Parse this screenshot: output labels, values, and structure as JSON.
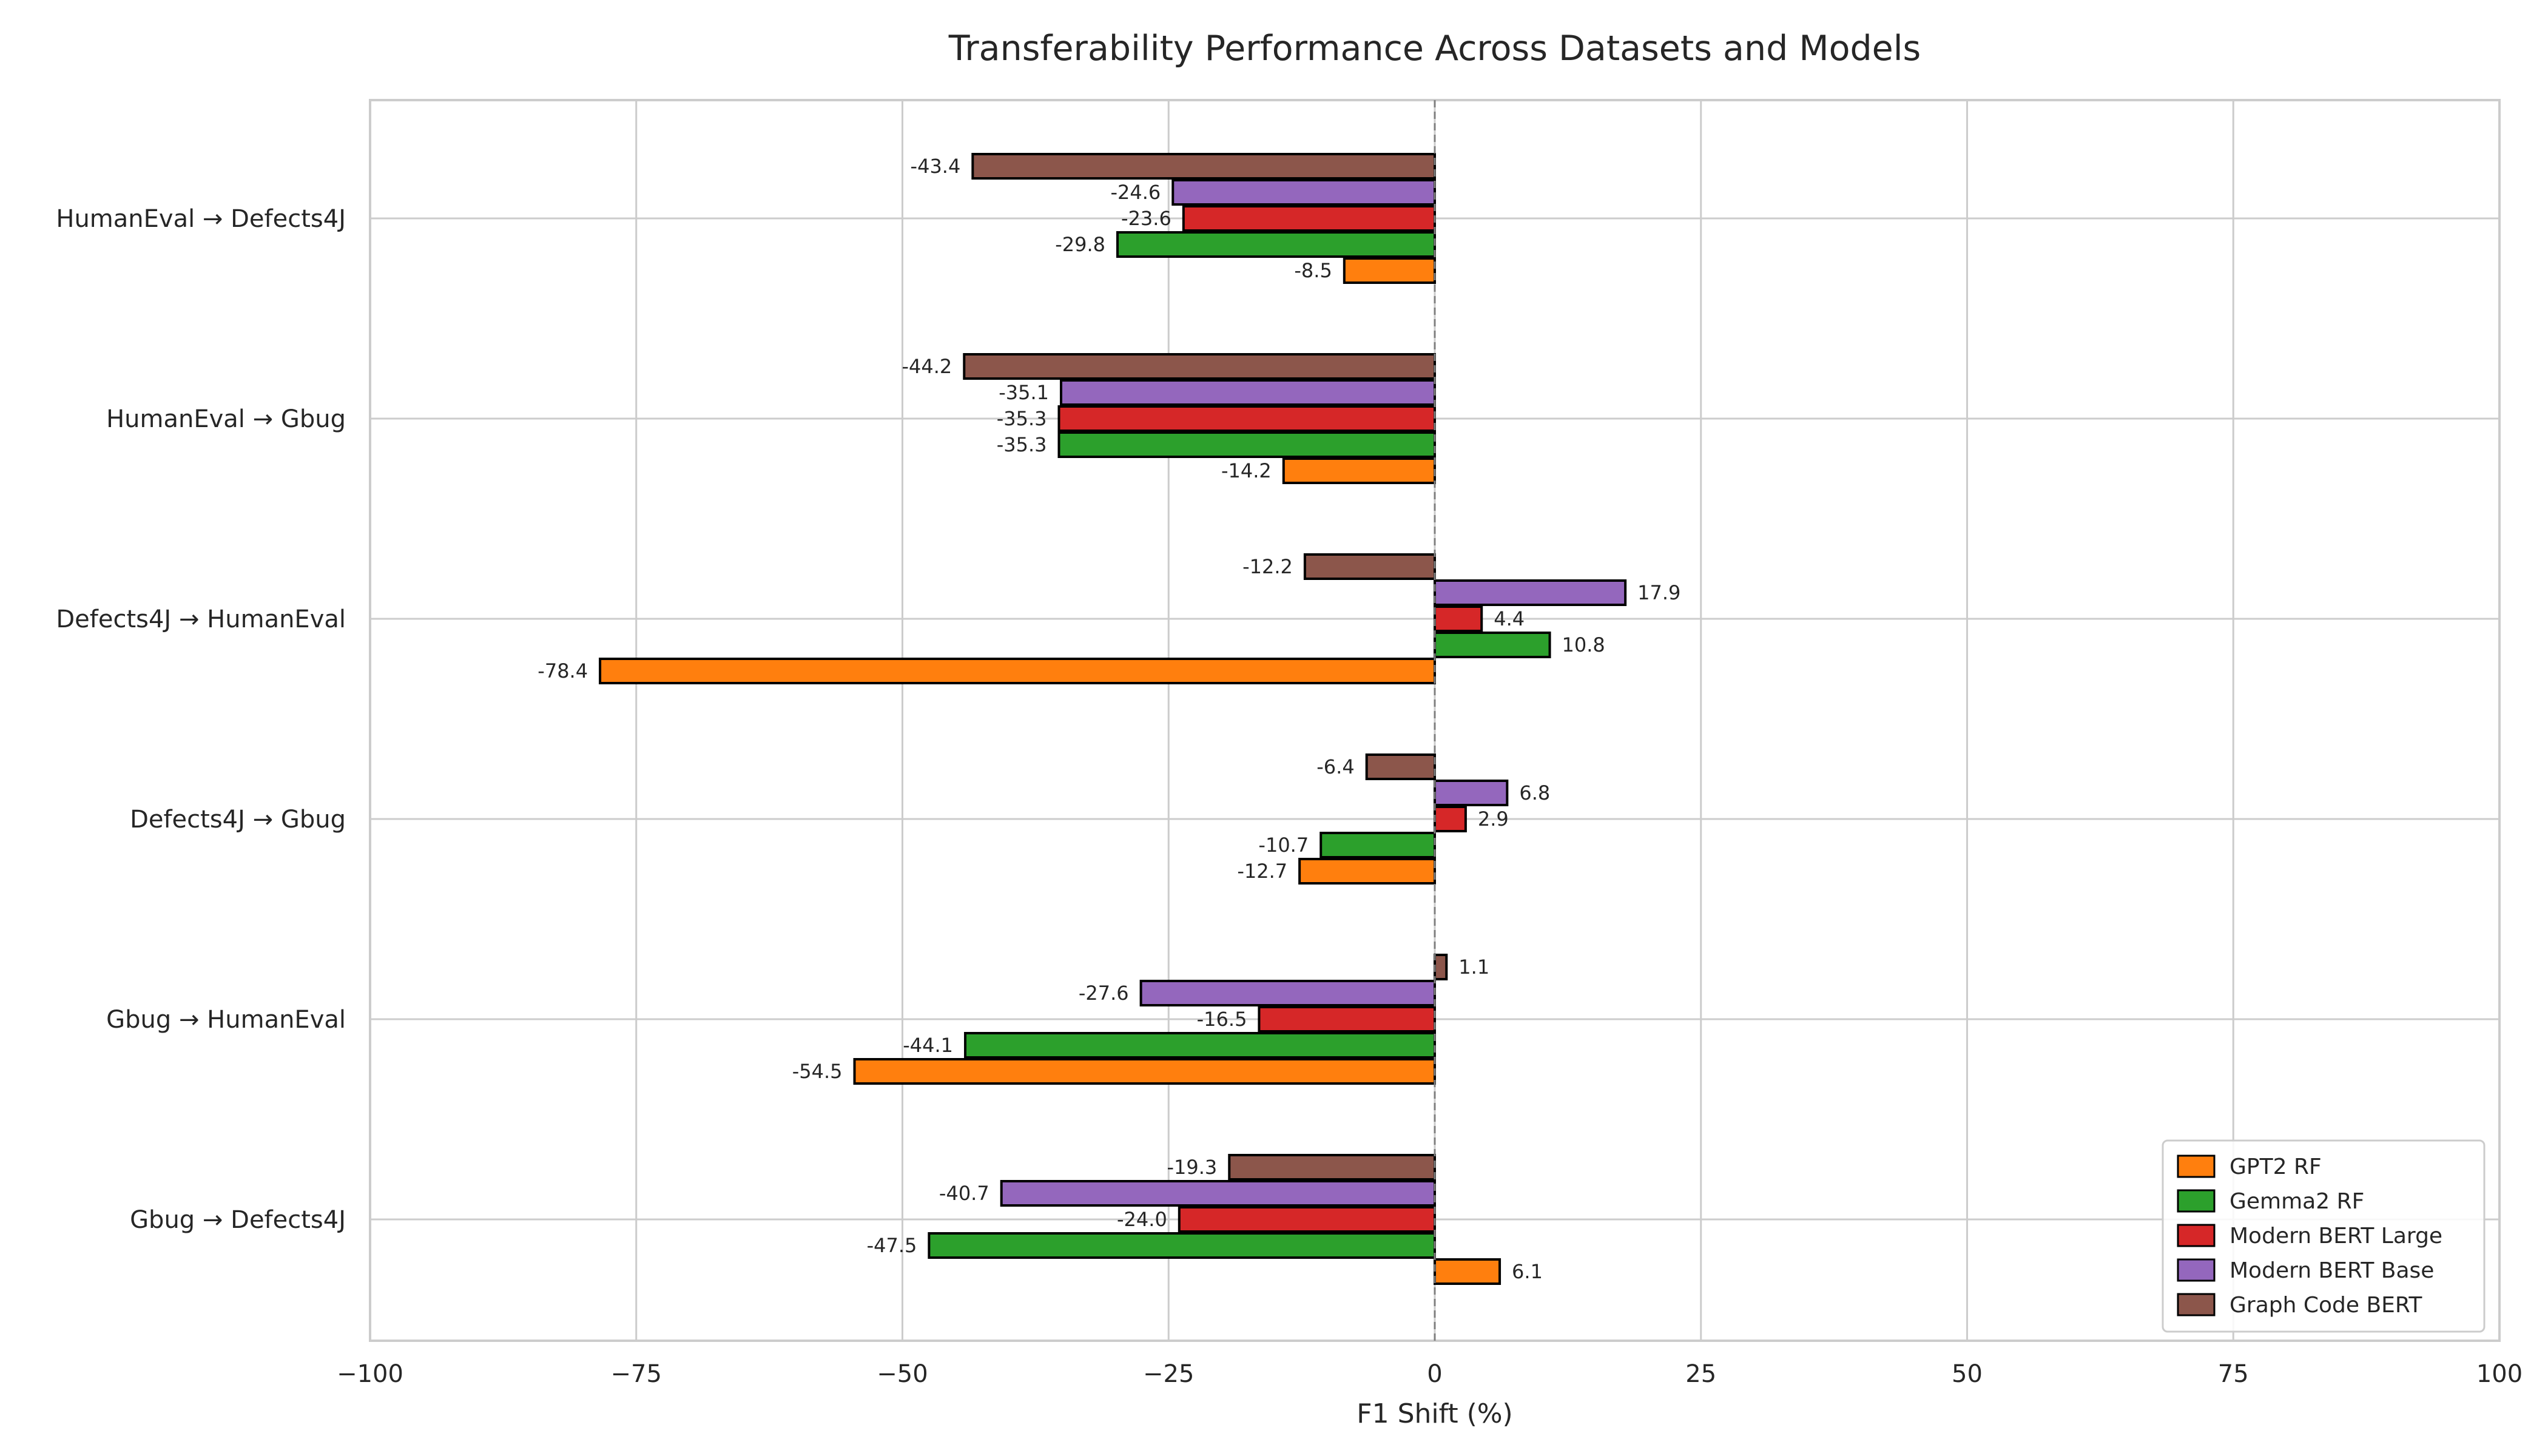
{
  "chart_data": {
    "type": "bar",
    "orientation": "horizontal",
    "title": "Transferability Performance Across Datasets and Models",
    "xlabel": "F1 Shift (%)",
    "ylabel": "",
    "xlim": [
      -100,
      100
    ],
    "xticks": [
      -100,
      -75,
      -50,
      -25,
      0,
      25,
      50,
      75,
      100
    ],
    "xtick_labels": [
      "−100",
      "−75",
      "−50",
      "−25",
      "0",
      "25",
      "50",
      "75",
      "100"
    ],
    "grid": true,
    "zero_line": "dashed",
    "legend_position": "lower-right",
    "categories": [
      "HumanEval → Defects4J",
      "HumanEval → Gbug",
      "Defects4J → HumanEval",
      "Defects4J → Gbug",
      "Gbug → HumanEval",
      "Gbug → Defects4J"
    ],
    "series": [
      {
        "name": "GPT2 RF",
        "color": "#ff7f0e",
        "values": [
          -8.5,
          -14.2,
          -78.4,
          -12.7,
          -54.5,
          6.1
        ]
      },
      {
        "name": "Gemma2 RF",
        "color": "#2ca02c",
        "values": [
          -29.8,
          -35.3,
          10.8,
          -10.7,
          -44.1,
          -47.5
        ]
      },
      {
        "name": "Modern BERT Large",
        "color": "#d62728",
        "values": [
          -23.6,
          -35.3,
          4.4,
          2.9,
          -16.5,
          -24.0
        ]
      },
      {
        "name": "Modern BERT Base",
        "color": "#9467bd",
        "values": [
          -24.6,
          -35.1,
          17.9,
          6.8,
          -27.6,
          -40.7
        ]
      },
      {
        "name": "Graph Code BERT",
        "color": "#8c564b",
        "values": [
          -43.4,
          -44.2,
          -12.2,
          -6.4,
          1.1,
          -19.3
        ]
      }
    ]
  }
}
